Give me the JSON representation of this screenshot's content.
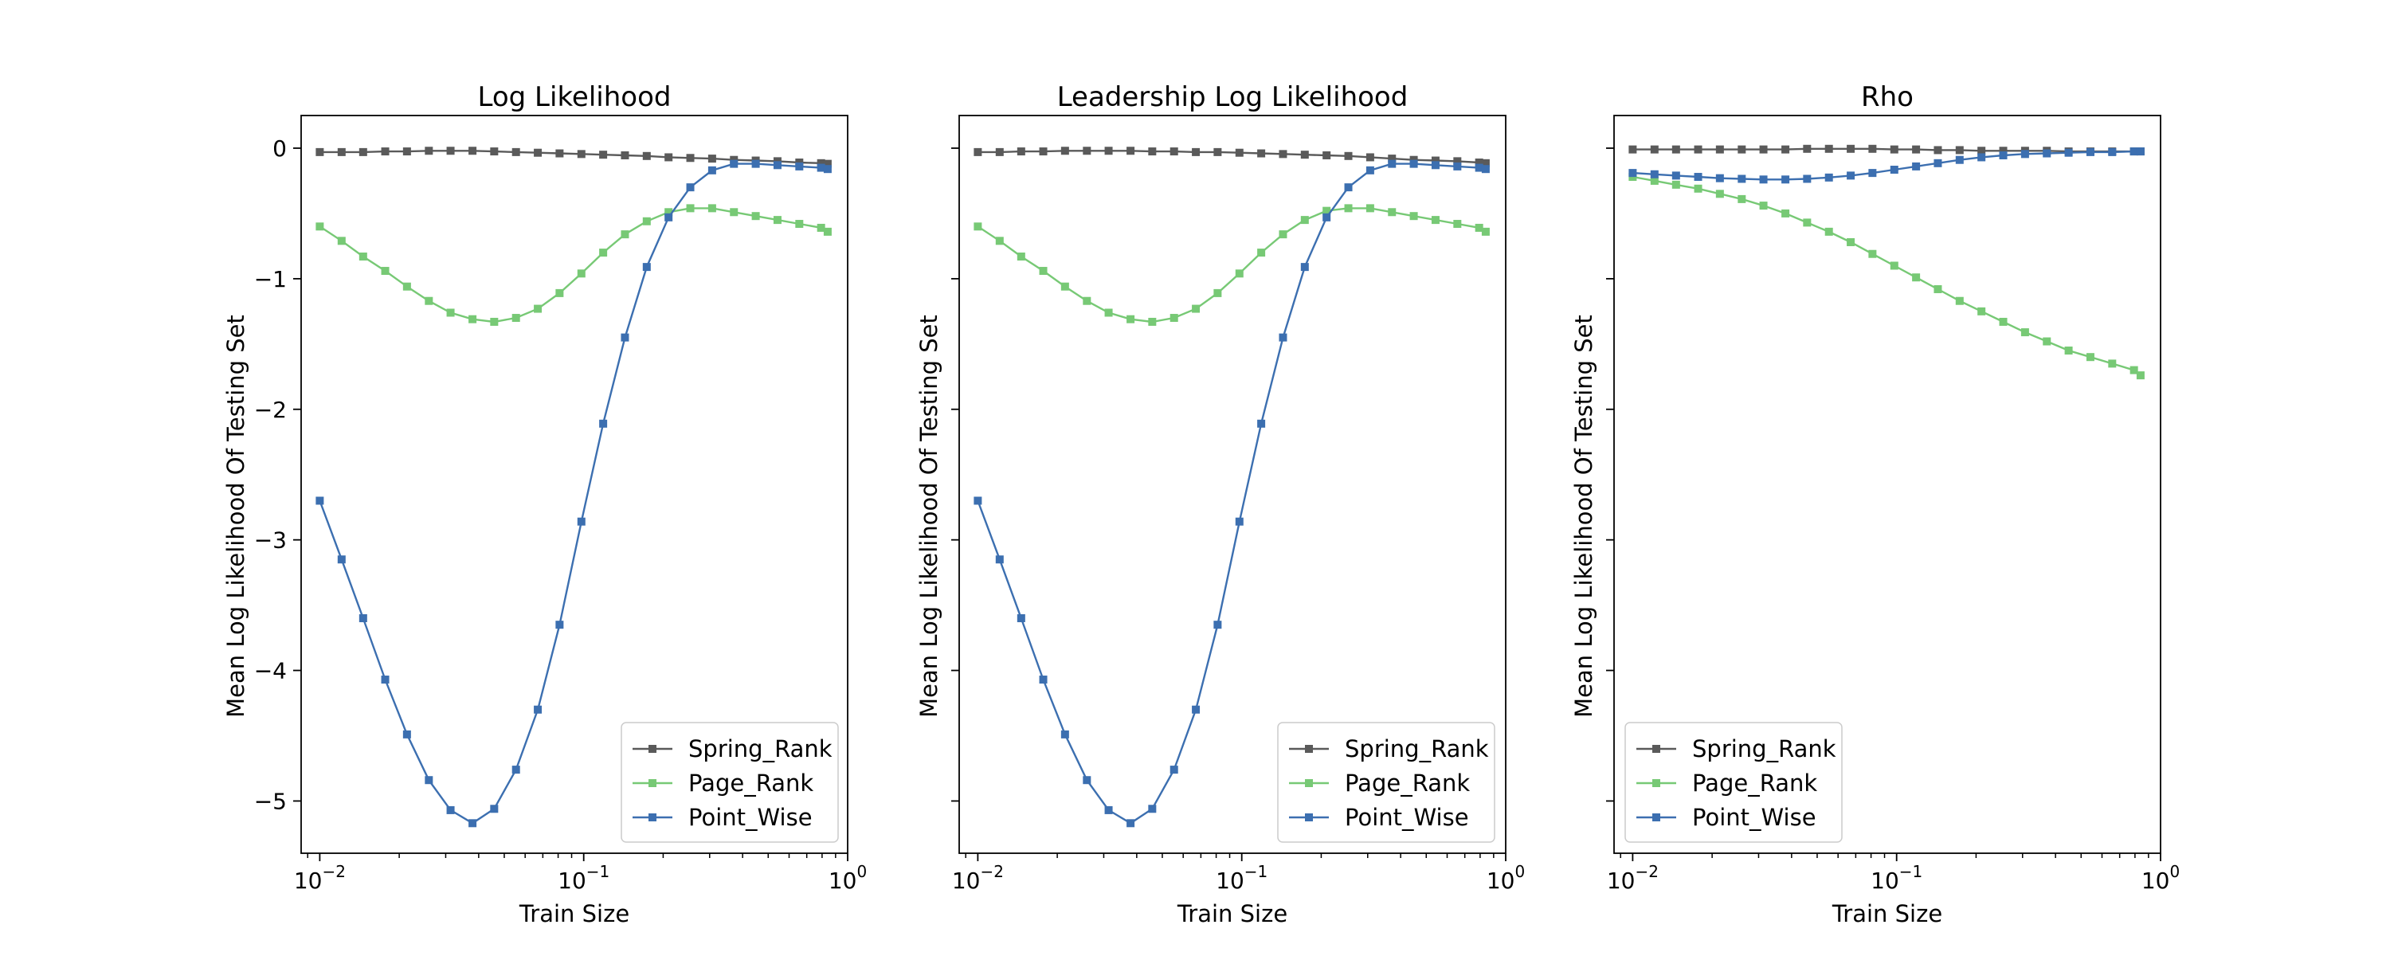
{
  "chart_data": [
    {
      "type": "line",
      "title": "Log Likelihood",
      "xlabel": "Train Size",
      "ylabel": "Mean Log Likelihood Of Testing Set",
      "x_scale": "log",
      "xlim": [
        0.0085,
        1.0
      ],
      "ylim": [
        -5.4,
        0.25
      ],
      "yticks": [
        0,
        -1,
        -2,
        -3,
        -4,
        -5
      ],
      "ytick_labels": [
        "0",
        "-1",
        "-2",
        "-3",
        "-4",
        "-5"
      ],
      "xticks": [
        0.01,
        0.1,
        1
      ],
      "xtick_labels": [
        [
          "10",
          "−2"
        ],
        [
          "10",
          "−1"
        ],
        [
          "10",
          "0"
        ]
      ],
      "legend_position": "lower right",
      "grid": false,
      "x": [
        0.01,
        0.0121,
        0.0146,
        0.0177,
        0.0214,
        0.0259,
        0.0313,
        0.0379,
        0.0458,
        0.0554,
        0.067,
        0.081,
        0.098,
        0.1185,
        0.1433,
        0.1733,
        0.2096,
        0.2535,
        0.3066,
        0.3708,
        0.4484,
        0.5423,
        0.6559,
        0.7932,
        0.84
      ],
      "series": [
        {
          "name": "Spring_Rank",
          "color": "#5a5a5a",
          "values": [
            -0.03,
            -0.03,
            -0.03,
            -0.025,
            -0.025,
            -0.02,
            -0.02,
            -0.02,
            -0.025,
            -0.03,
            -0.035,
            -0.04,
            -0.045,
            -0.05,
            -0.055,
            -0.06,
            -0.07,
            -0.075,
            -0.08,
            -0.09,
            -0.095,
            -0.1,
            -0.11,
            -0.115,
            -0.12
          ]
        },
        {
          "name": "Page_Rank",
          "color": "#77c975",
          "values": [
            -0.6,
            -0.71,
            -0.83,
            -0.94,
            -1.06,
            -1.17,
            -1.26,
            -1.31,
            -1.33,
            -1.3,
            -1.23,
            -1.11,
            -0.96,
            -0.8,
            -0.66,
            -0.56,
            -0.49,
            -0.46,
            -0.46,
            -0.49,
            -0.52,
            -0.55,
            -0.58,
            -0.61,
            -0.64
          ]
        },
        {
          "name": "Point_Wise",
          "color": "#3c6fb0",
          "values": [
            -2.7,
            -3.15,
            -3.6,
            -4.07,
            -4.49,
            -4.84,
            -5.07,
            -5.17,
            -5.06,
            -4.76,
            -4.3,
            -3.65,
            -2.86,
            -2.11,
            -1.45,
            -0.91,
            -0.53,
            -0.3,
            -0.17,
            -0.12,
            -0.12,
            -0.13,
            -0.14,
            -0.15,
            -0.16
          ]
        }
      ]
    },
    {
      "type": "line",
      "title": "Leadership Log Likelihood",
      "xlabel": "Train Size",
      "ylabel": "Mean Log Likelihood Of Testing Set",
      "x_scale": "log",
      "xlim": [
        0.0085,
        1.0
      ],
      "ylim": [
        -5.4,
        0.25
      ],
      "yticks": [
        0,
        -1,
        -2,
        -3,
        -4,
        -5
      ],
      "ytick_labels": [],
      "xticks": [
        0.01,
        0.1,
        1
      ],
      "xtick_labels": [
        [
          "10",
          "−2"
        ],
        [
          "10",
          "−1"
        ],
        [
          "10",
          "0"
        ]
      ],
      "legend_position": "lower right",
      "grid": false,
      "x": [
        0.01,
        0.0121,
        0.0146,
        0.0177,
        0.0214,
        0.0259,
        0.0313,
        0.0379,
        0.0458,
        0.0554,
        0.067,
        0.081,
        0.098,
        0.1185,
        0.1433,
        0.1733,
        0.2096,
        0.2535,
        0.3066,
        0.3708,
        0.4484,
        0.5423,
        0.6559,
        0.7932,
        0.84
      ],
      "series": [
        {
          "name": "Spring_Rank",
          "color": "#5a5a5a",
          "values": [
            -0.03,
            -0.03,
            -0.025,
            -0.025,
            -0.02,
            -0.02,
            -0.02,
            -0.02,
            -0.025,
            -0.025,
            -0.03,
            -0.03,
            -0.035,
            -0.04,
            -0.045,
            -0.05,
            -0.055,
            -0.06,
            -0.07,
            -0.08,
            -0.09,
            -0.095,
            -0.1,
            -0.11,
            -0.115
          ]
        },
        {
          "name": "Page_Rank",
          "color": "#77c975",
          "values": [
            -0.6,
            -0.71,
            -0.83,
            -0.94,
            -1.06,
            -1.17,
            -1.26,
            -1.31,
            -1.33,
            -1.3,
            -1.23,
            -1.11,
            -0.96,
            -0.8,
            -0.66,
            -0.55,
            -0.48,
            -0.46,
            -0.46,
            -0.49,
            -0.52,
            -0.55,
            -0.58,
            -0.61,
            -0.64
          ]
        },
        {
          "name": "Point_Wise",
          "color": "#3c6fb0",
          "values": [
            -2.7,
            -3.15,
            -3.6,
            -4.07,
            -4.49,
            -4.84,
            -5.07,
            -5.17,
            -5.06,
            -4.76,
            -4.3,
            -3.65,
            -2.86,
            -2.11,
            -1.45,
            -0.91,
            -0.53,
            -0.3,
            -0.17,
            -0.12,
            -0.12,
            -0.13,
            -0.14,
            -0.15,
            -0.16
          ]
        }
      ]
    },
    {
      "type": "line",
      "title": "Rho",
      "xlabel": "Train Size",
      "ylabel": "Mean Log Likelihood Of Testing Set",
      "x_scale": "log",
      "xlim": [
        0.0085,
        1.0
      ],
      "ylim": [
        -5.4,
        0.25
      ],
      "yticks": [
        0,
        -1,
        -2,
        -3,
        -4,
        -5
      ],
      "ytick_labels": [],
      "xticks": [
        0.01,
        0.1,
        1
      ],
      "xtick_labels": [
        [
          "10",
          "−2"
        ],
        [
          "10",
          "−1"
        ],
        [
          "10",
          "0"
        ]
      ],
      "legend_position": "lower left",
      "grid": false,
      "x": [
        0.01,
        0.0121,
        0.0146,
        0.0177,
        0.0214,
        0.0259,
        0.0313,
        0.0379,
        0.0458,
        0.0554,
        0.067,
        0.081,
        0.098,
        0.1185,
        0.1433,
        0.1733,
        0.2096,
        0.2535,
        0.3066,
        0.3708,
        0.4484,
        0.5423,
        0.6559,
        0.7932,
        0.84
      ],
      "series": [
        {
          "name": "Spring_Rank",
          "color": "#5a5a5a",
          "values": [
            -0.01,
            -0.01,
            -0.01,
            -0.01,
            -0.01,
            -0.01,
            -0.01,
            -0.01,
            -0.005,
            -0.005,
            -0.005,
            -0.005,
            -0.01,
            -0.01,
            -0.015,
            -0.015,
            -0.02,
            -0.02,
            -0.02,
            -0.02,
            -0.025,
            -0.025,
            -0.025,
            -0.025,
            -0.025
          ]
        },
        {
          "name": "Page_Rank",
          "color": "#77c975",
          "values": [
            -0.22,
            -0.25,
            -0.28,
            -0.31,
            -0.35,
            -0.39,
            -0.44,
            -0.5,
            -0.57,
            -0.64,
            -0.72,
            -0.81,
            -0.9,
            -0.99,
            -1.08,
            -1.17,
            -1.25,
            -1.33,
            -1.41,
            -1.48,
            -1.55,
            -1.6,
            -1.65,
            -1.7,
            -1.74
          ]
        },
        {
          "name": "Point_Wise",
          "color": "#3c6fb0",
          "values": [
            -0.19,
            -0.2,
            -0.21,
            -0.22,
            -0.23,
            -0.235,
            -0.24,
            -0.24,
            -0.235,
            -0.225,
            -0.21,
            -0.19,
            -0.165,
            -0.14,
            -0.115,
            -0.09,
            -0.07,
            -0.055,
            -0.045,
            -0.04,
            -0.035,
            -0.03,
            -0.03,
            -0.025,
            -0.025
          ]
        }
      ]
    }
  ]
}
